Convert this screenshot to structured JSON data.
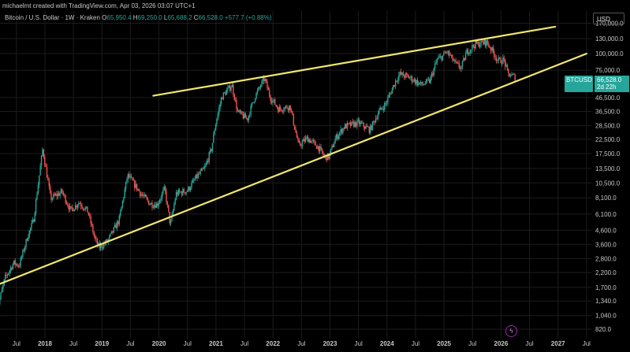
{
  "header": {
    "credit": "michaelmt created with TradingView.com, Apr 03, 2026 03:07 UTC+1",
    "symbol": "Bitcoin / U.S. Dollar · 1W · Kraken",
    "open_label": "O",
    "open": "65,950.4",
    "high_label": "H",
    "high": "69,250.0",
    "low_label": "L",
    "low": "65,688.2",
    "close_label": "C",
    "close": "66,528.0",
    "change": "+577.7 (+0.88%)"
  },
  "currency_button": "USD",
  "price_tag": {
    "symbol": "BTCUSD",
    "price": "66,528.0",
    "countdown": "2d 22h"
  },
  "badge_icon": "lightning-icon",
  "colors": {
    "up": "#26a69a",
    "down": "#ef5350",
    "trendline": "#f2e76b",
    "background": "#000000",
    "grid": "#1c1c1c"
  },
  "chart_data": {
    "type": "candlestick",
    "scale": "log",
    "ylim": [
      620,
      200000
    ],
    "y_ticks": [
      820,
      1040,
      1340,
      1700,
      2200,
      2800,
      3600,
      4600,
      6100,
      8100,
      10500,
      13500,
      17500,
      22500,
      28500,
      36500,
      46500,
      75000,
      100000,
      130000,
      170000
    ],
    "y_tick_labels": [
      "820.0",
      "1,040.0",
      "1,340.0",
      "1,700.0",
      "2,200.0",
      "2,800.0",
      "3,600.0",
      "4,600.0",
      "6,100.0",
      "8,100.0",
      "10,500.0",
      "13,500.0",
      "17,500.0",
      "22,500.0",
      "28,500.0",
      "36,500.0",
      "46,500.0",
      "75,000.0",
      "100,000.0",
      "130,000.0",
      "170,000.0"
    ],
    "x_ticks": [
      {
        "label": "Jul",
        "t": 2017.5,
        "major": false
      },
      {
        "label": "2018",
        "t": 2018.0,
        "major": true
      },
      {
        "label": "Jul",
        "t": 2018.5,
        "major": false
      },
      {
        "label": "2019",
        "t": 2019.0,
        "major": true
      },
      {
        "label": "Jul",
        "t": 2019.5,
        "major": false
      },
      {
        "label": "2020",
        "t": 2020.0,
        "major": true
      },
      {
        "label": "Jul",
        "t": 2020.5,
        "major": false
      },
      {
        "label": "2021",
        "t": 2021.0,
        "major": true
      },
      {
        "label": "Jul",
        "t": 2021.5,
        "major": false
      },
      {
        "label": "2022",
        "t": 2022.0,
        "major": true
      },
      {
        "label": "Jul",
        "t": 2022.5,
        "major": false
      },
      {
        "label": "2023",
        "t": 2023.0,
        "major": true
      },
      {
        "label": "Jul",
        "t": 2023.5,
        "major": false
      },
      {
        "label": "2024",
        "t": 2024.0,
        "major": true
      },
      {
        "label": "Jul",
        "t": 2024.5,
        "major": false
      },
      {
        "label": "2025",
        "t": 2025.0,
        "major": true
      },
      {
        "label": "Jul",
        "t": 2025.5,
        "major": false
      },
      {
        "label": "2026",
        "t": 2026.0,
        "major": true
      },
      {
        "label": "Jul",
        "t": 2026.5,
        "major": false
      },
      {
        "label": "2027",
        "t": 2027.0,
        "major": true
      },
      {
        "label": "Jul",
        "t": 2027.5,
        "major": false
      }
    ],
    "price_path": [
      [
        2017.15,
        1100
      ],
      [
        2017.3,
        2000
      ],
      [
        2017.45,
        2600
      ],
      [
        2017.55,
        2500
      ],
      [
        2017.7,
        4200
      ],
      [
        2017.8,
        5500
      ],
      [
        2017.92,
        14000
      ],
      [
        2017.96,
        19000
      ],
      [
        2018.05,
        11000
      ],
      [
        2018.1,
        8000
      ],
      [
        2018.3,
        9000
      ],
      [
        2018.45,
        6500
      ],
      [
        2018.6,
        7500
      ],
      [
        2018.75,
        6400
      ],
      [
        2018.88,
        3900
      ],
      [
        2018.95,
        3400
      ],
      [
        2019.1,
        3800
      ],
      [
        2019.3,
        5500
      ],
      [
        2019.45,
        12000
      ],
      [
        2019.55,
        10500
      ],
      [
        2019.7,
        8500
      ],
      [
        2019.85,
        7300
      ],
      [
        2019.97,
        7200
      ],
      [
        2020.1,
        9500
      ],
      [
        2020.2,
        5000
      ],
      [
        2020.3,
        8700
      ],
      [
        2020.5,
        9200
      ],
      [
        2020.65,
        11500
      ],
      [
        2020.8,
        13500
      ],
      [
        2020.92,
        19000
      ],
      [
        2020.99,
        29000
      ],
      [
        2021.1,
        47000
      ],
      [
        2021.28,
        58000
      ],
      [
        2021.38,
        36000
      ],
      [
        2021.55,
        32000
      ],
      [
        2021.68,
        47000
      ],
      [
        2021.85,
        65000
      ],
      [
        2021.95,
        47000
      ],
      [
        2022.1,
        38000
      ],
      [
        2022.3,
        40000
      ],
      [
        2022.45,
        20000
      ],
      [
        2022.6,
        23000
      ],
      [
        2022.8,
        19500
      ],
      [
        2022.9,
        16500
      ],
      [
        2022.98,
        16600
      ],
      [
        2023.1,
        23000
      ],
      [
        2023.25,
        28000
      ],
      [
        2023.5,
        30000
      ],
      [
        2023.7,
        26500
      ],
      [
        2023.85,
        36000
      ],
      [
        2023.98,
        42000
      ],
      [
        2024.15,
        62000
      ],
      [
        2024.22,
        70000
      ],
      [
        2024.4,
        66000
      ],
      [
        2024.6,
        58000
      ],
      [
        2024.75,
        62000
      ],
      [
        2024.88,
        90000
      ],
      [
        2024.98,
        96000
      ],
      [
        2025.05,
        104000
      ],
      [
        2025.2,
        84000
      ],
      [
        2025.3,
        78000
      ],
      [
        2025.4,
        103000
      ],
      [
        2025.55,
        118000
      ],
      [
        2025.75,
        122000
      ],
      [
        2025.85,
        105000
      ],
      [
        2025.95,
        88000
      ],
      [
        2026.05,
        90000
      ],
      [
        2026.12,
        70000
      ],
      [
        2026.2,
        68000
      ],
      [
        2026.25,
        66528
      ]
    ],
    "trendlines": [
      {
        "name": "upper",
        "points": [
          [
            2019.9,
            48000
          ],
          [
            2026.95,
            160000
          ]
        ]
      },
      {
        "name": "lower",
        "points": [
          [
            2017.2,
            1800
          ],
          [
            2027.5,
            100000
          ]
        ]
      }
    ]
  }
}
